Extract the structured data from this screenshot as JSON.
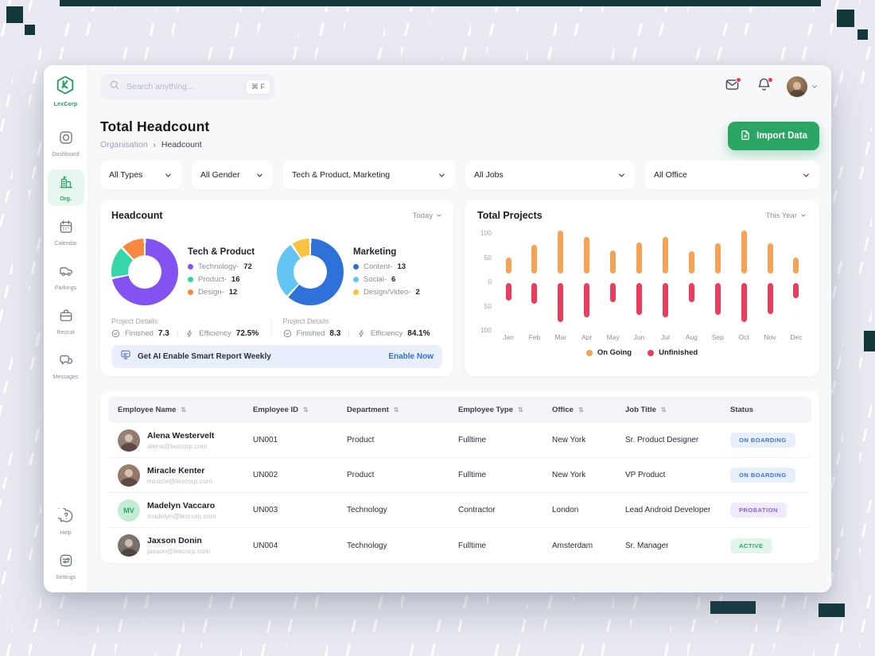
{
  "sidebar": {
    "logo_label": "LexCorp",
    "items": [
      {
        "label": "Dashboard",
        "icon": "dashboard-icon",
        "active": false
      },
      {
        "label": "Org.",
        "icon": "org-icon",
        "active": true
      },
      {
        "label": "Calendar",
        "icon": "calendar-icon",
        "active": false
      },
      {
        "label": "Parkings",
        "icon": "parkings-icon",
        "active": false
      },
      {
        "label": "Recruit",
        "icon": "recruit-icon",
        "active": false
      },
      {
        "label": "Messages",
        "icon": "messages-icon",
        "active": false
      }
    ],
    "footer_items": [
      {
        "label": "Help",
        "icon": "help-icon"
      },
      {
        "label": "Settings",
        "icon": "settings-icon"
      }
    ]
  },
  "topbar": {
    "search_placeholder": "Search anything...",
    "search_shortcut": "⌘ F"
  },
  "header": {
    "title": "Total Headcount",
    "breadcrumb": {
      "parent": "Organisation",
      "current": "Headcount"
    },
    "import_button": "Import Data"
  },
  "filters": [
    {
      "label": "All Types"
    },
    {
      "label": "All Gender"
    },
    {
      "label": "Tech & Product, Marketing"
    },
    {
      "label": "All Jobs"
    },
    {
      "label": "All Office"
    }
  ],
  "headcount_card": {
    "title": "Headcount",
    "period": "Today",
    "details": [
      {
        "label": "Project Details",
        "finished_label": "Finished",
        "finished": "7.3",
        "efficiency_label": "Efficiency",
        "efficiency": "72.5%"
      },
      {
        "label": "Project Details",
        "finished_label": "Finished",
        "finished": "8.3",
        "efficiency_label": "Efficiency",
        "efficiency": "84.1%"
      }
    ],
    "banner": {
      "text": "Get AI Enable Smart Report Weekly",
      "action": "Enable Now"
    }
  },
  "projects_card": {
    "title": "Total Projects",
    "period": "This Year",
    "legend": [
      "On Going",
      "Unfinished"
    ]
  },
  "chart_data": [
    {
      "type": "pie",
      "variant": "donut",
      "title": "Tech & Product",
      "labels": [
        "Technology",
        "Product",
        "Design"
      ],
      "values": [
        72,
        16,
        12
      ],
      "colors": [
        "#8353f1",
        "#36d6a8",
        "#f6883f"
      ],
      "legend_position": "right"
    },
    {
      "type": "pie",
      "variant": "donut",
      "title": "Marketing",
      "labels": [
        "Content",
        "Social",
        "Design/Video"
      ],
      "values": [
        13,
        6,
        2
      ],
      "colors": [
        "#2e72d9",
        "#63c5f3",
        "#f6c240"
      ],
      "legend_position": "right"
    },
    {
      "type": "bar",
      "title": "Total Projects",
      "orientation": "mirrored-vertical",
      "categories": [
        "Jan",
        "Feb",
        "Mar",
        "Apr",
        "May",
        "Jun",
        "Jul",
        "Aug",
        "Sep",
        "Oct",
        "Nov",
        "Dec"
      ],
      "series": [
        {
          "name": "On Going",
          "color": "#f6a254",
          "values": [
            36,
            64,
            97,
            82,
            52,
            69,
            82,
            50,
            67,
            97,
            67,
            36
          ]
        },
        {
          "name": "Unfinished",
          "color": "#ea3d5e",
          "values": [
            39,
            47,
            87,
            77,
            43,
            71,
            77,
            43,
            71,
            87,
            70,
            34
          ]
        }
      ],
      "ylim": [
        0,
        100
      ],
      "axis_ticks": [
        "100",
        "50",
        "0",
        "50",
        "100"
      ],
      "grid": false,
      "legend_position": "bottom"
    }
  ],
  "table": {
    "columns": [
      {
        "label": "Employee Name",
        "sortable": true
      },
      {
        "label": "Employee ID",
        "sortable": true
      },
      {
        "label": "Department",
        "sortable": true
      },
      {
        "label": "Employee Type",
        "sortable": true
      },
      {
        "label": "Office",
        "sortable": true
      },
      {
        "label": "Job Title",
        "sortable": true
      },
      {
        "label": "Status",
        "sortable": false
      }
    ],
    "rows": [
      {
        "name": "Alena Westervelt",
        "email": "alena@lexcorp.com",
        "avatar": {
          "type": "photo",
          "bg": "#8a7163"
        },
        "id": "UN001",
        "department": "Product",
        "type": "Fulltime",
        "office": "New York",
        "job": "Sr. Product Designer",
        "status": "ON BOARDING"
      },
      {
        "name": "Miracle Kenter",
        "email": "miracle@lexcorp.com",
        "avatar": {
          "type": "photo",
          "bg": "#8d6e5d"
        },
        "id": "UN002",
        "department": "Product",
        "type": "Fulltime",
        "office": "New York",
        "job": "VP Product",
        "status": "ON BOARDING"
      },
      {
        "name": "Madelyn Vaccaro",
        "email": "madelyn@lexcorp.com",
        "avatar": {
          "type": "initials",
          "initials": "MV",
          "bg": "#c3ecd4",
          "fg": "#2aa56a"
        },
        "id": "UN003",
        "department": "Technology",
        "type": "Contractor",
        "office": "London",
        "job": "Lead Android Developer",
        "status": "PROBATION"
      },
      {
        "name": "Jaxson Donin",
        "email": "jaxson@lexcorp.com",
        "avatar": {
          "type": "photo",
          "bg": "#6f655f"
        },
        "id": "UN004",
        "department": "Technology",
        "type": "Fulltime",
        "office": "Amsterdam",
        "job": "Sr. Manager",
        "status": "ACTIVE"
      }
    ],
    "status_styles": {
      "ON BOARDING": {
        "bg": "#e7eefc",
        "fg": "#3e6fe1"
      },
      "PROBATION": {
        "bg": "#efeafd",
        "fg": "#8a5cf5"
      },
      "ACTIVE": {
        "bg": "#e3f6ec",
        "fg": "#27a56a"
      }
    }
  },
  "colors": {
    "accent_green": "#2ba564",
    "decor_dark": "#12383b",
    "link_blue": "#2f6fe4",
    "notification_red": "#ee3a4e"
  }
}
